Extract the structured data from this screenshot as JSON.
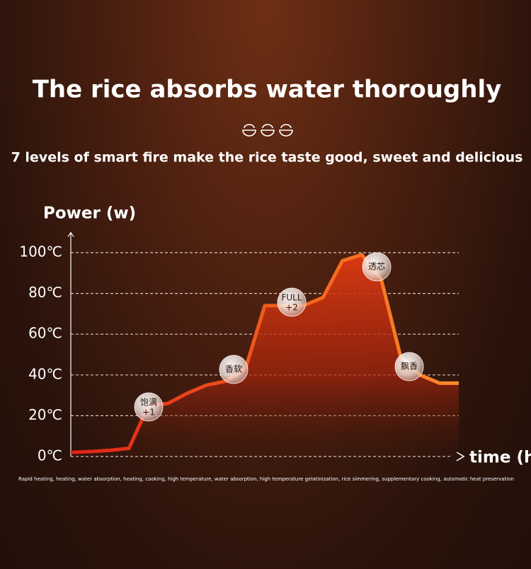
{
  "chart_data": {
    "type": "area",
    "title": "The rice absorbs water thoroughly",
    "subtitle": "7 levels of smart fire make the rice taste good, sweet and delicious",
    "y_label": "Power (w)",
    "x_label": "time (h)",
    "caption": "Rapid heating, heating, water absorption, heating, cooking, high temperature, water absorption, high temperature gelatinization, rice simmering, supplementary cooking, automatic heat preservation",
    "categories": [
      null,
      null,
      null,
      null,
      null,
      null,
      null,
      null,
      null,
      null,
      null,
      null,
      null,
      null,
      null,
      null,
      null,
      null,
      null,
      null,
      null
    ],
    "values": [
      2,
      2.4,
      3,
      4,
      25,
      26,
      31,
      35,
      37,
      43,
      74,
      74,
      74,
      78,
      96,
      99,
      87,
      49,
      40,
      36,
      36
    ],
    "color": "#f06a1e",
    "ylim": [
      0,
      105
    ],
    "yticks": [
      {
        "value": 0,
        "label": "0℃"
      },
      {
        "value": 20,
        "label": "20℃"
      },
      {
        "value": 40,
        "label": "40℃"
      },
      {
        "value": 60,
        "label": "60℃"
      },
      {
        "value": 80,
        "label": "80℃"
      },
      {
        "value": 100,
        "label": "100℃"
      }
    ],
    "grid": true,
    "annotations": [
      [
        "饱满",
        "+1"
      ],
      [
        "香软"
      ],
      [
        "FULL",
        "+2"
      ],
      [
        "透芯"
      ],
      [
        "飘香"
      ]
    ]
  }
}
